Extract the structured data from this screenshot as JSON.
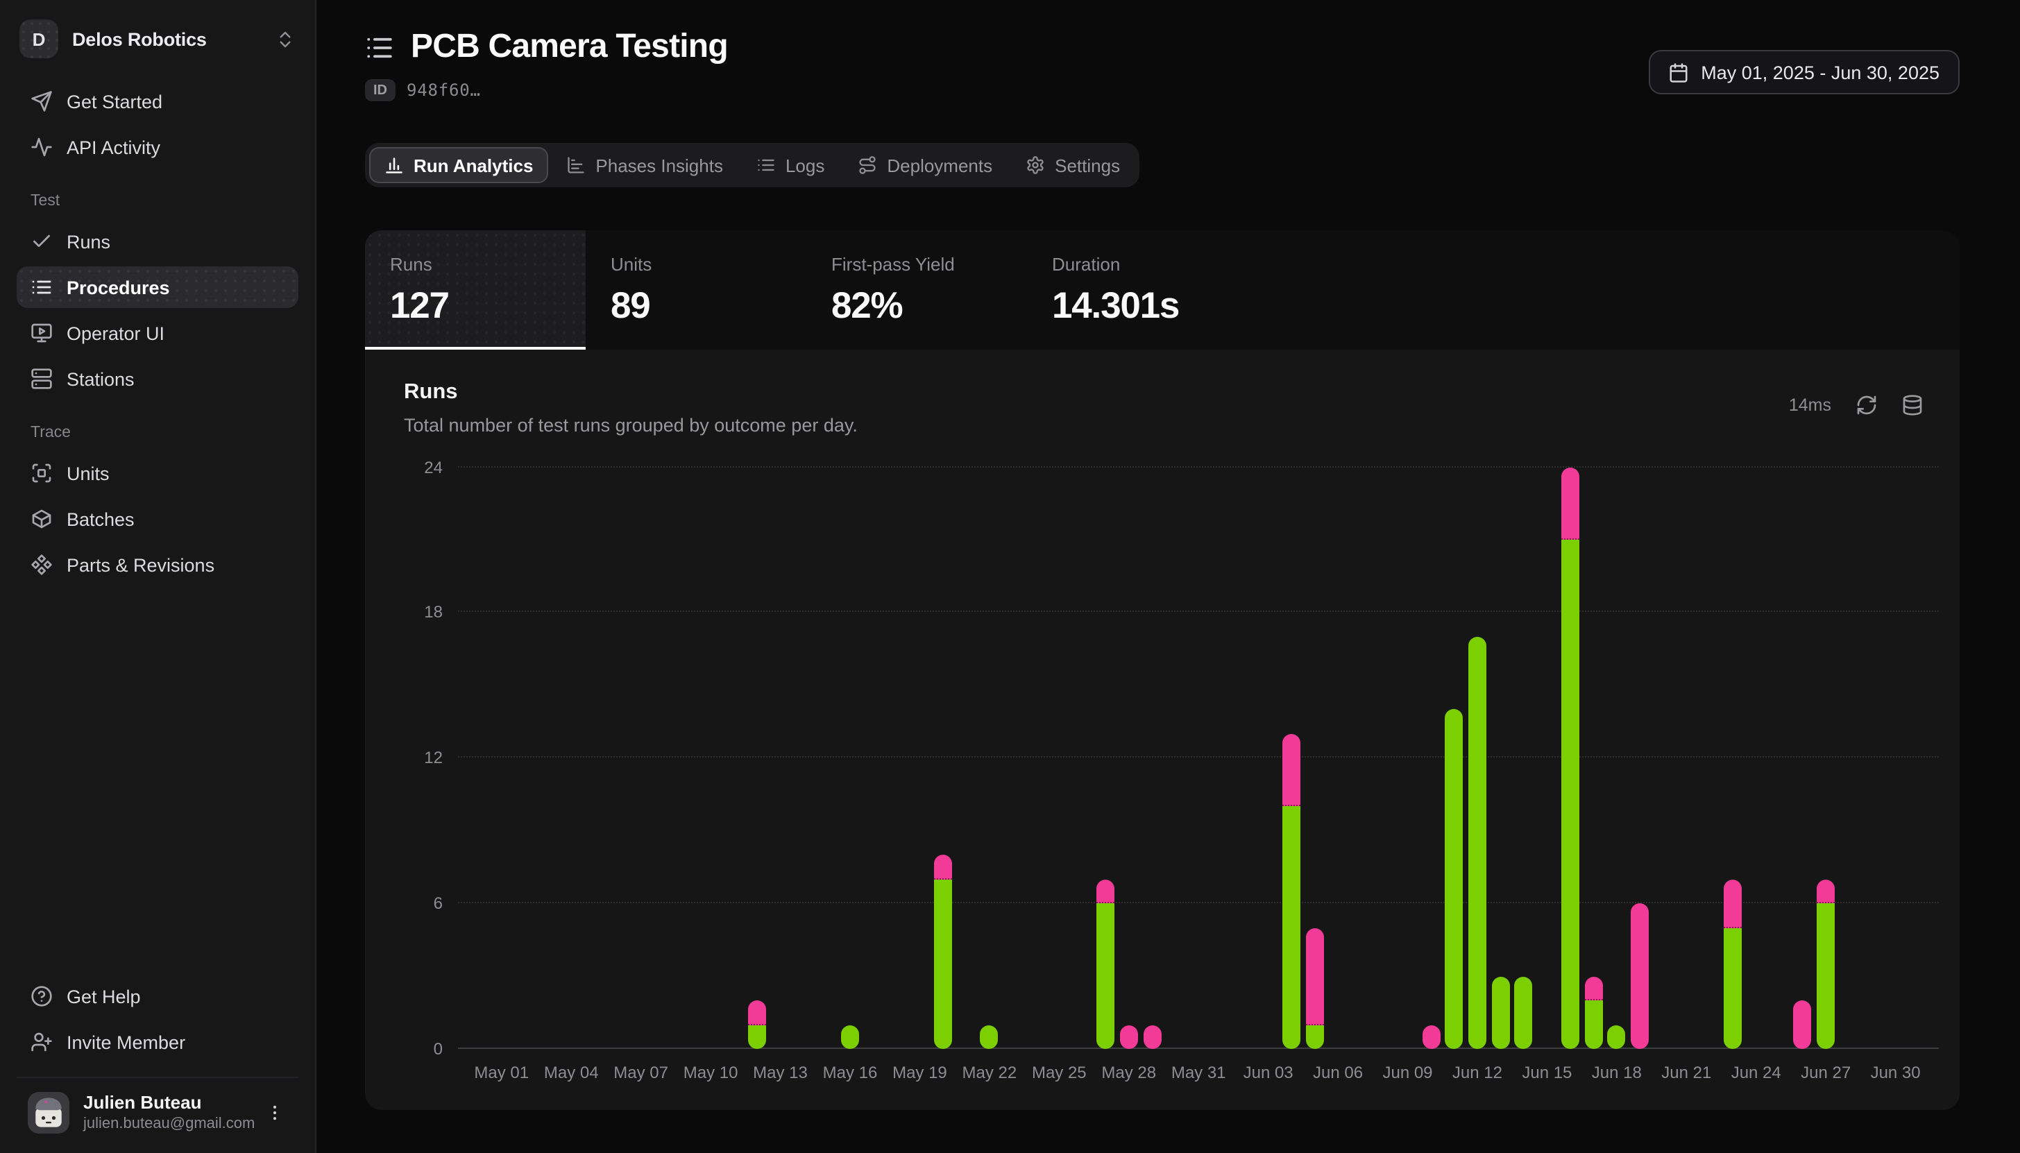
{
  "workspace": {
    "initial": "D",
    "name": "Delos Robotics"
  },
  "sidebar": {
    "top_items": [
      {
        "icon": "send-icon",
        "label": "Get Started"
      },
      {
        "icon": "activity-icon",
        "label": "API Activity"
      }
    ],
    "sections": [
      {
        "label": "Test",
        "items": [
          {
            "icon": "check-icon",
            "label": "Runs"
          },
          {
            "icon": "list-icon",
            "label": "Procedures",
            "active": true
          },
          {
            "icon": "monitor-play-icon",
            "label": "Operator UI"
          },
          {
            "icon": "server-icon",
            "label": "Stations"
          }
        ]
      },
      {
        "label": "Trace",
        "items": [
          {
            "icon": "scan-icon",
            "label": "Units"
          },
          {
            "icon": "package-icon",
            "label": "Batches"
          },
          {
            "icon": "component-icon",
            "label": "Parts & Revisions"
          }
        ]
      }
    ],
    "footer_items": [
      {
        "icon": "help-circle-icon",
        "label": "Get Help"
      },
      {
        "icon": "user-plus-icon",
        "label": "Invite Member"
      }
    ],
    "user": {
      "name": "Julien Buteau",
      "email": "julien.buteau@gmail.com"
    }
  },
  "header": {
    "title": "PCB Camera Testing",
    "id_badge": "ID",
    "id_value": "948f60…",
    "date_range": "May 01, 2025 - Jun 30, 2025"
  },
  "tabs": [
    {
      "icon": "bar-chart-icon",
      "label": "Run Analytics",
      "active": true
    },
    {
      "icon": "chart-bar-icon",
      "label": "Phases Insights"
    },
    {
      "icon": "rows-list-icon",
      "label": "Logs"
    },
    {
      "icon": "route-icon",
      "label": "Deployments"
    },
    {
      "icon": "gear-icon",
      "label": "Settings"
    }
  ],
  "stats": [
    {
      "label": "Runs",
      "value": "127",
      "selected": true
    },
    {
      "label": "Units",
      "value": "89"
    },
    {
      "label": "First-pass Yield",
      "value": "82%"
    },
    {
      "label": "Duration",
      "value": "14.301s"
    }
  ],
  "chart_panel": {
    "title": "Runs",
    "subtitle": "Total number of test runs grouped by outcome per day.",
    "latency": "14ms"
  },
  "chart_data": {
    "type": "bar",
    "stacked": true,
    "title": "Runs",
    "xlabel": "",
    "ylabel": "",
    "ylim": [
      0,
      24
    ],
    "y_ticks": [
      0,
      6,
      12,
      18,
      24
    ],
    "grid": true,
    "legend": false,
    "x_days_total": 61,
    "x_tick_interval_days": 3,
    "x_tick_labels": [
      "May 01",
      "May 04",
      "May 07",
      "May 10",
      "May 13",
      "May 16",
      "May 19",
      "May 22",
      "May 25",
      "May 28",
      "May 31",
      "Jun 03",
      "Jun 06",
      "Jun 09",
      "Jun 12",
      "Jun 15",
      "Jun 18",
      "Jun 21",
      "Jun 24",
      "Jun 27",
      "Jun 30"
    ],
    "series_colors": {
      "pass": "#7ccf00",
      "fail": "#f23a97"
    },
    "bars": [
      {
        "date": "May 12",
        "day": 11,
        "pass": 1,
        "fail": 1
      },
      {
        "date": "May 16",
        "day": 15,
        "pass": 1,
        "fail": 0
      },
      {
        "date": "May 20",
        "day": 19,
        "pass": 7,
        "fail": 1
      },
      {
        "date": "May 22",
        "day": 21,
        "pass": 1,
        "fail": 0
      },
      {
        "date": "May 27",
        "day": 26,
        "pass": 6,
        "fail": 1
      },
      {
        "date": "May 28",
        "day": 27,
        "pass": 0,
        "fail": 1
      },
      {
        "date": "May 29",
        "day": 28,
        "pass": 0,
        "fail": 1
      },
      {
        "date": "Jun 04",
        "day": 34,
        "pass": 10,
        "fail": 3
      },
      {
        "date": "Jun 05",
        "day": 35,
        "pass": 1,
        "fail": 4
      },
      {
        "date": "Jun 10",
        "day": 40,
        "pass": 0,
        "fail": 1
      },
      {
        "date": "Jun 11",
        "day": 41,
        "pass": 14,
        "fail": 0
      },
      {
        "date": "Jun 12",
        "day": 42,
        "pass": 17,
        "fail": 0
      },
      {
        "date": "Jun 13",
        "day": 43,
        "pass": 3,
        "fail": 0
      },
      {
        "date": "Jun 14",
        "day": 44,
        "pass": 3,
        "fail": 0
      },
      {
        "date": "Jun 16",
        "day": 46,
        "pass": 21,
        "fail": 3
      },
      {
        "date": "Jun 17",
        "day": 47,
        "pass": 2,
        "fail": 1
      },
      {
        "date": "Jun 18",
        "day": 48,
        "pass": 1,
        "fail": 0
      },
      {
        "date": "Jun 19",
        "day": 49,
        "pass": 0,
        "fail": 6
      },
      {
        "date": "Jun 23",
        "day": 53,
        "pass": 5,
        "fail": 2
      },
      {
        "date": "Jun 26",
        "day": 56,
        "pass": 0,
        "fail": 2
      },
      {
        "date": "Jun 27",
        "day": 57,
        "pass": 6,
        "fail": 1
      }
    ]
  }
}
